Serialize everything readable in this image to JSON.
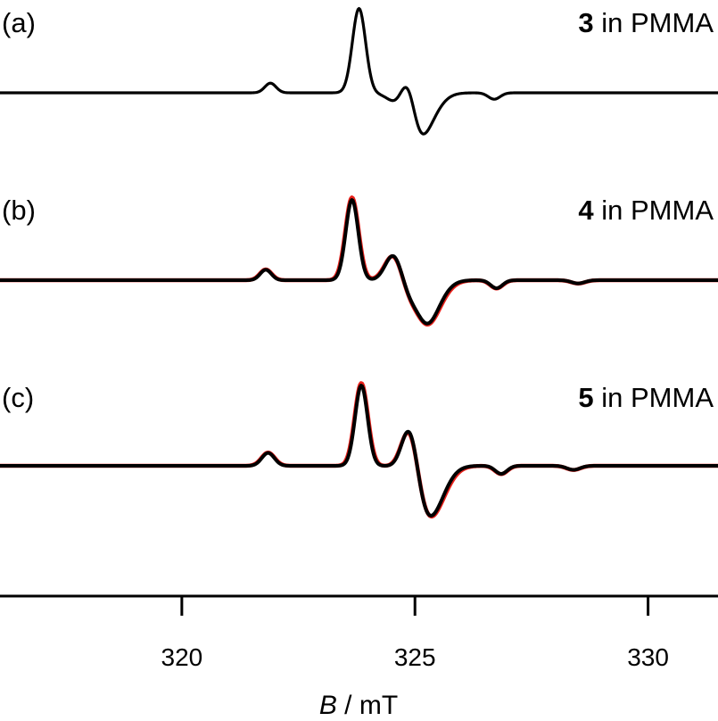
{
  "chart_data": {
    "type": "line",
    "title": "",
    "xlabel_var": "B",
    "xlabel_unit": " / mT",
    "xlim": [
      316.1,
      331.5
    ],
    "xticks": [
      320,
      325,
      330
    ],
    "xtick_labels": [
      "320",
      "325",
      "330"
    ],
    "colors": {
      "experimental": "#000000",
      "simulation": "#e8201a"
    },
    "panels": [
      {
        "label": "(a)",
        "sample_number": "3",
        "sample_text": " in PMMA",
        "has_simulation": false,
        "peaks": [
          {
            "center": 321.9,
            "width": 0.17,
            "amplitude": 0.12
          },
          {
            "center": 323.8,
            "width": 0.2,
            "amplitude": 1.05
          },
          {
            "center": 324.85,
            "width": 0.22,
            "amplitude": 0.55
          },
          {
            "center": 325.05,
            "width": 0.45,
            "amplitude": -0.62
          },
          {
            "center": 326.7,
            "width": 0.18,
            "amplitude": -0.08
          }
        ]
      },
      {
        "label": "(b)",
        "sample_number": "4",
        "sample_text": " in PMMA",
        "has_simulation": true,
        "peaks": [
          {
            "center": 321.8,
            "width": 0.17,
            "amplitude": 0.13
          },
          {
            "center": 323.65,
            "width": 0.19,
            "amplitude": 1.0
          },
          {
            "center": 324.55,
            "width": 0.25,
            "amplitude": 0.35
          },
          {
            "center": 325.05,
            "width": 0.22,
            "amplitude": 0.12
          },
          {
            "center": 325.2,
            "width": 0.42,
            "amplitude": -0.6
          },
          {
            "center": 326.75,
            "width": 0.18,
            "amplitude": -0.1
          },
          {
            "center": 328.5,
            "width": 0.2,
            "amplitude": -0.04
          }
        ]
      },
      {
        "label": "(c)",
        "sample_number": "5",
        "sample_text": " in PMMA",
        "has_simulation": true,
        "peaks": [
          {
            "center": 321.85,
            "width": 0.19,
            "amplitude": 0.16
          },
          {
            "center": 323.85,
            "width": 0.19,
            "amplitude": 1.0
          },
          {
            "center": 324.9,
            "width": 0.24,
            "amplitude": 0.66
          },
          {
            "center": 325.3,
            "width": 0.42,
            "amplitude": -0.65
          },
          {
            "center": 326.85,
            "width": 0.18,
            "amplitude": -0.1
          },
          {
            "center": 328.4,
            "width": 0.2,
            "amplitude": -0.05
          }
        ]
      }
    ]
  }
}
